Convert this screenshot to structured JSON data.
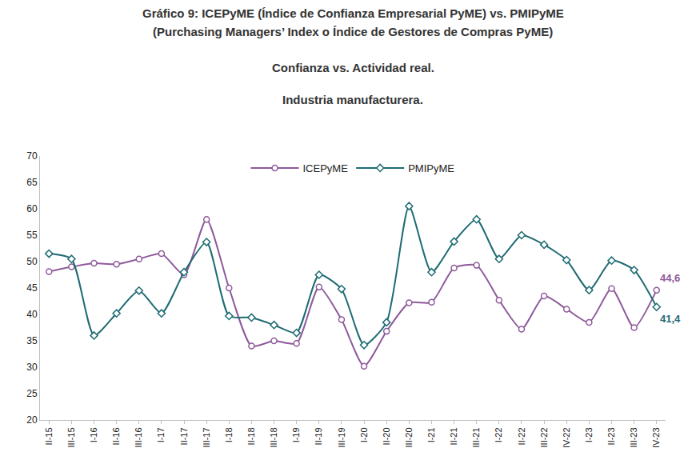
{
  "chart_data": {
    "type": "line",
    "title": [
      "Gráfico 9: ICEPyME (Índice de Confianza Empresarial PyME) vs. PMIPyME",
      "(Purchasing Managers’ Index o Índice de Gestores de Compras PyME)"
    ],
    "subtitle": [
      "Confianza vs. Actividad real.",
      "Industria manufacturera."
    ],
    "categories": [
      "II-15",
      "III-15",
      "I-16",
      "II-16",
      "III-16",
      "I-17",
      "II-17",
      "III-17",
      "I-18",
      "II-18",
      "III-18",
      "I-19",
      "II-19",
      "III-19",
      "I-20",
      "II-20",
      "III-20",
      "I-21",
      "II-21",
      "III-21",
      "I-22",
      "II-22",
      "III-22",
      "IV-22",
      "I-23",
      "II-23",
      "III-23",
      "IV-23"
    ],
    "series": [
      {
        "name": "ICEPyME",
        "color": "#8e5a9b",
        "marker": "circle",
        "line_style": "solid",
        "values": [
          48.1,
          49.0,
          49.7,
          49.5,
          50.5,
          51.5,
          47.5,
          58.0,
          45.0,
          34.0,
          35.0,
          34.5,
          45.2,
          39.0,
          30.2,
          36.8,
          42.2,
          42.3,
          48.8,
          49.3,
          42.7,
          37.2,
          43.5,
          41.0,
          38.5,
          44.9,
          37.5,
          44.6
        ]
      },
      {
        "name": "PMIPyME",
        "color": "#1f6b73",
        "marker": "diamond",
        "line_style": "solid",
        "values": [
          51.5,
          50.5,
          36.0,
          40.2,
          44.5,
          40.2,
          48.0,
          53.7,
          39.7,
          39.4,
          38.0,
          36.5,
          47.5,
          44.8,
          34.2,
          38.5,
          60.5,
          48.0,
          53.8,
          58.0,
          50.5,
          55.0,
          53.2,
          50.3,
          44.6,
          50.2,
          48.4,
          41.4
        ]
      }
    ],
    "annotations": [
      {
        "text": "44,6",
        "series": "ICEPyME",
        "category": "IV-23"
      },
      {
        "text": "41,4",
        "series": "PMIPyME",
        "category": "IV-23"
      }
    ],
    "ylim": [
      20,
      70
    ],
    "yticks": [
      20,
      25,
      30,
      35,
      40,
      45,
      50,
      55,
      60,
      65,
      70
    ],
    "grid": false,
    "legend": "top"
  }
}
